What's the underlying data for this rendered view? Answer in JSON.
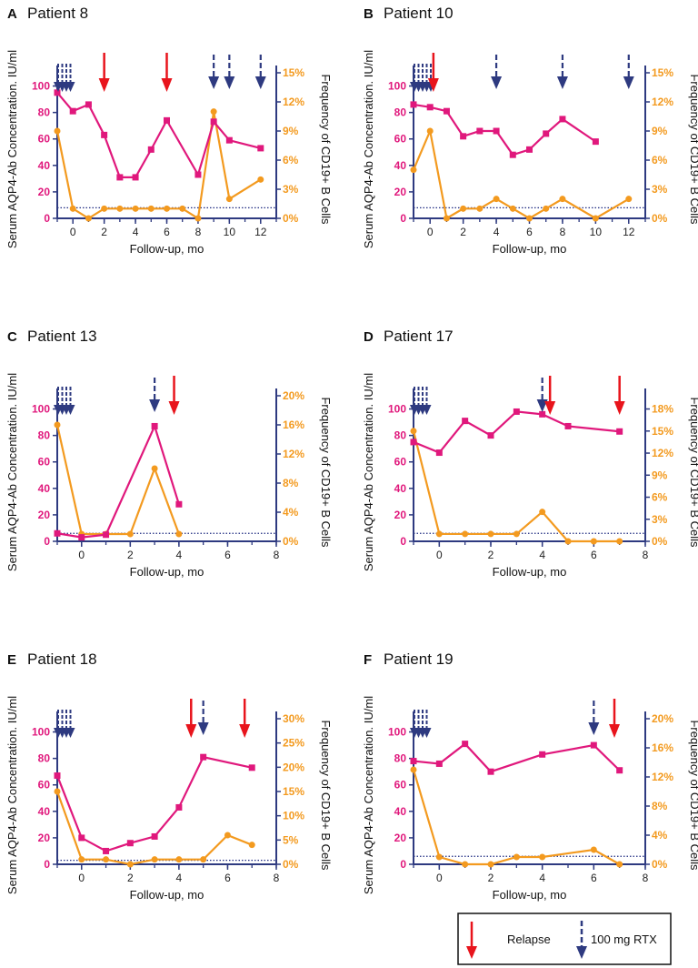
{
  "colors": {
    "aqp4": "#e0187c",
    "cd19": "#f39a1f",
    "axis": "#2e3a80",
    "relapse": "#e8141c",
    "rtx": "#2e3a80"
  },
  "legend": {
    "relapse_label": "Relapse",
    "rtx_label": "100 mg RTX"
  },
  "chart_data": [
    {
      "type": "line",
      "panel": "A",
      "title": "Patient 8",
      "xlabel": "Follow-up, mo",
      "ylabel": "Serum AQP4-Ab Concentration. IU/ml",
      "ylabel_right": "Frequency of CD19+ B Cells",
      "xlim": [
        -1,
        13
      ],
      "xticks": [
        0,
        2,
        4,
        6,
        8,
        10,
        12
      ],
      "ylim": [
        0,
        110
      ],
      "yticks": [
        0,
        20,
        40,
        60,
        80,
        100
      ],
      "y2lim": [
        0,
        15
      ],
      "y2ticks": [
        "0%",
        "3%",
        "6%",
        "9%",
        "12%",
        "15%"
      ],
      "y2tickvals": [
        0,
        3,
        6,
        9,
        12,
        15
      ],
      "threshold": 8,
      "series": [
        {
          "name": "",
          "axis": "left",
          "marker": "square",
          "x": [
            -1,
            0,
            1,
            2,
            3,
            4,
            5,
            6,
            8,
            9,
            10,
            12
          ],
          "y": [
            95,
            81,
            86,
            63,
            31,
            31,
            52,
            74,
            33,
            73,
            59,
            53
          ]
        },
        {
          "name": "",
          "axis": "right",
          "marker": "circle",
          "x": [
            -1,
            0,
            1,
            2,
            3,
            4,
            5,
            6,
            7,
            8,
            9,
            10,
            12
          ],
          "y": [
            9,
            1,
            0,
            1,
            1,
            1,
            1,
            1,
            1,
            0,
            11,
            2,
            4
          ]
        }
      ],
      "relapse_times": [
        2,
        6
      ],
      "rtx_times": [
        9,
        10,
        12
      ],
      "rtx_initial_count": 4
    },
    {
      "type": "line",
      "panel": "B",
      "title": "Patient 10",
      "xlabel": "Follow-up, mo",
      "ylabel": "Serum AQP4-Ab Concentration. IU/ml",
      "ylabel_right": "Frequency of CD19+ B Cells",
      "xlim": [
        -1,
        13
      ],
      "xticks": [
        0,
        2,
        4,
        6,
        8,
        10,
        12
      ],
      "ylim": [
        0,
        110
      ],
      "yticks": [
        0,
        20,
        40,
        60,
        80,
        100
      ],
      "y2lim": [
        0,
        15
      ],
      "y2ticks": [
        "0%",
        "3%",
        "6%",
        "9%",
        "12%",
        "15%"
      ],
      "y2tickvals": [
        0,
        3,
        6,
        9,
        12,
        15
      ],
      "threshold": 8,
      "series": [
        {
          "name": "",
          "axis": "left",
          "marker": "square",
          "x": [
            -1,
            0,
            1,
            2,
            3,
            4,
            5,
            6,
            7,
            8,
            10
          ],
          "y": [
            86,
            84,
            81,
            62,
            66,
            66,
            48,
            52,
            64,
            75,
            58
          ]
        },
        {
          "name": "",
          "axis": "right",
          "marker": "circle",
          "x": [
            -1,
            0,
            1,
            2,
            3,
            4,
            5,
            6,
            7,
            8,
            10,
            12
          ],
          "y": [
            5,
            9,
            0,
            1,
            1,
            2,
            1,
            0,
            1,
            2,
            0,
            2
          ]
        }
      ],
      "relapse_times": [
        0.2
      ],
      "rtx_times": [
        4,
        8,
        12
      ],
      "rtx_initial_count": 5
    },
    {
      "type": "line",
      "panel": "C",
      "title": "Patient 13",
      "xlabel": "Follow-up, mo",
      "ylabel": "Serum AQP4-Ab Concentration. IU/ml",
      "ylabel_right": "Frequency of CD19+ B Cells",
      "xlim": [
        -1,
        8
      ],
      "xticks": [
        0,
        2,
        4,
        6,
        8
      ],
      "ylim": [
        0,
        110
      ],
      "yticks": [
        0,
        20,
        40,
        60,
        80,
        100
      ],
      "y2lim": [
        0,
        20
      ],
      "y2ticks": [
        "0%",
        "4%",
        "8%",
        "12%",
        "16%",
        "20%"
      ],
      "y2tickvals": [
        0,
        4,
        8,
        12,
        16,
        20
      ],
      "threshold": 6,
      "series": [
        {
          "name": "",
          "axis": "left",
          "marker": "square",
          "x": [
            -1,
            0,
            1,
            3,
            4
          ],
          "y": [
            6,
            3,
            5,
            87,
            28
          ]
        },
        {
          "name": "",
          "axis": "right",
          "marker": "circle",
          "x": [
            -1,
            0,
            1,
            2,
            3,
            4
          ],
          "y": [
            16,
            1,
            1,
            1,
            10,
            1
          ]
        }
      ],
      "relapse_times": [
        3.8
      ],
      "rtx_times": [
        3
      ],
      "rtx_initial_count": 4
    },
    {
      "type": "line",
      "panel": "D",
      "title": "Patient 17",
      "xlabel": "Follow-up, mo",
      "ylabel": "Serum AQP4-Ab Concentration. IU/ml",
      "ylabel_right": "Frequency of CD19+ B Cells",
      "xlim": [
        -1,
        8
      ],
      "xticks": [
        0,
        2,
        4,
        6,
        8
      ],
      "ylim": [
        0,
        110
      ],
      "yticks": [
        0,
        20,
        40,
        60,
        80,
        100
      ],
      "y2lim": [
        0,
        19.8
      ],
      "y2ticks": [
        "0%",
        "3%",
        "6%",
        "9%",
        "12%",
        "15%",
        "18%"
      ],
      "y2tickvals": [
        0,
        3,
        6,
        9,
        12,
        15,
        18
      ],
      "threshold": 6,
      "series": [
        {
          "name": "",
          "axis": "left",
          "marker": "square",
          "x": [
            -1,
            0,
            1,
            2,
            3,
            4,
            5,
            7
          ],
          "y": [
            75,
            67,
            91,
            80,
            98,
            96,
            87,
            83
          ]
        },
        {
          "name": "",
          "axis": "right",
          "marker": "circle",
          "x": [
            -1,
            0,
            1,
            2,
            3,
            4,
            5,
            6,
            7
          ],
          "y": [
            15,
            1,
            1,
            1,
            1,
            4,
            0,
            0,
            0
          ]
        }
      ],
      "relapse_times": [
        4.3,
        7
      ],
      "rtx_times": [
        4
      ],
      "rtx_initial_count": 4
    },
    {
      "type": "line",
      "panel": "E",
      "title": "Patient 18",
      "xlabel": "Follow-up, mo",
      "ylabel": "Serum AQP4-Ab Concentration. IU/ml",
      "ylabel_right": "Frequency of CD19+ B Cells",
      "xlim": [
        -1,
        8
      ],
      "xticks": [
        0,
        2,
        4,
        6,
        8
      ],
      "ylim": [
        0,
        110
      ],
      "yticks": [
        0,
        20,
        40,
        60,
        80,
        100
      ],
      "y2lim": [
        0,
        30
      ],
      "y2ticks": [
        "0%",
        "5%",
        "10%",
        "15%",
        "20%",
        "25%",
        "30%"
      ],
      "y2tickvals": [
        0,
        5,
        10,
        15,
        20,
        25,
        30
      ],
      "threshold": 3,
      "series": [
        {
          "name": "",
          "axis": "left",
          "marker": "square",
          "x": [
            -1,
            0,
            1,
            2,
            3,
            4,
            5,
            7
          ],
          "y": [
            67,
            20,
            10,
            16,
            21,
            43,
            81,
            73
          ]
        },
        {
          "name": "",
          "axis": "right",
          "marker": "circle",
          "x": [
            -1,
            0,
            1,
            2,
            3,
            4,
            5,
            6,
            7
          ],
          "y": [
            15,
            1,
            1,
            0,
            1,
            1,
            1,
            6,
            4
          ]
        }
      ],
      "relapse_times": [
        4.5,
        6.7
      ],
      "rtx_times": [
        5
      ],
      "rtx_initial_count": 4
    },
    {
      "type": "line",
      "panel": "F",
      "title": "Patient 19",
      "xlabel": "Follow-up, mo",
      "ylabel": "Serum AQP4-Ab Concentration. IU/ml",
      "ylabel_right": "Frequency of CD19+ B Cells",
      "xlim": [
        -1,
        8
      ],
      "xticks": [
        0,
        2,
        4,
        6,
        8
      ],
      "ylim": [
        0,
        110
      ],
      "yticks": [
        0,
        20,
        40,
        60,
        80,
        100
      ],
      "y2lim": [
        0,
        20
      ],
      "y2ticks": [
        "0%",
        "4%",
        "8%",
        "12%",
        "16%",
        "20%"
      ],
      "y2tickvals": [
        0,
        4,
        8,
        12,
        16,
        20
      ],
      "threshold": 6,
      "series": [
        {
          "name": "",
          "axis": "left",
          "marker": "square",
          "x": [
            -1,
            0,
            1,
            2,
            4,
            6,
            7
          ],
          "y": [
            78,
            76,
            91,
            70,
            83,
            90,
            71
          ]
        },
        {
          "name": "",
          "axis": "right",
          "marker": "circle",
          "x": [
            -1,
            0,
            1,
            2,
            3,
            4,
            6,
            7
          ],
          "y": [
            13,
            1,
            0,
            0,
            1,
            1,
            2,
            0
          ]
        }
      ],
      "relapse_times": [
        6.8
      ],
      "rtx_times": [
        6
      ],
      "rtx_initial_count": 4
    }
  ]
}
